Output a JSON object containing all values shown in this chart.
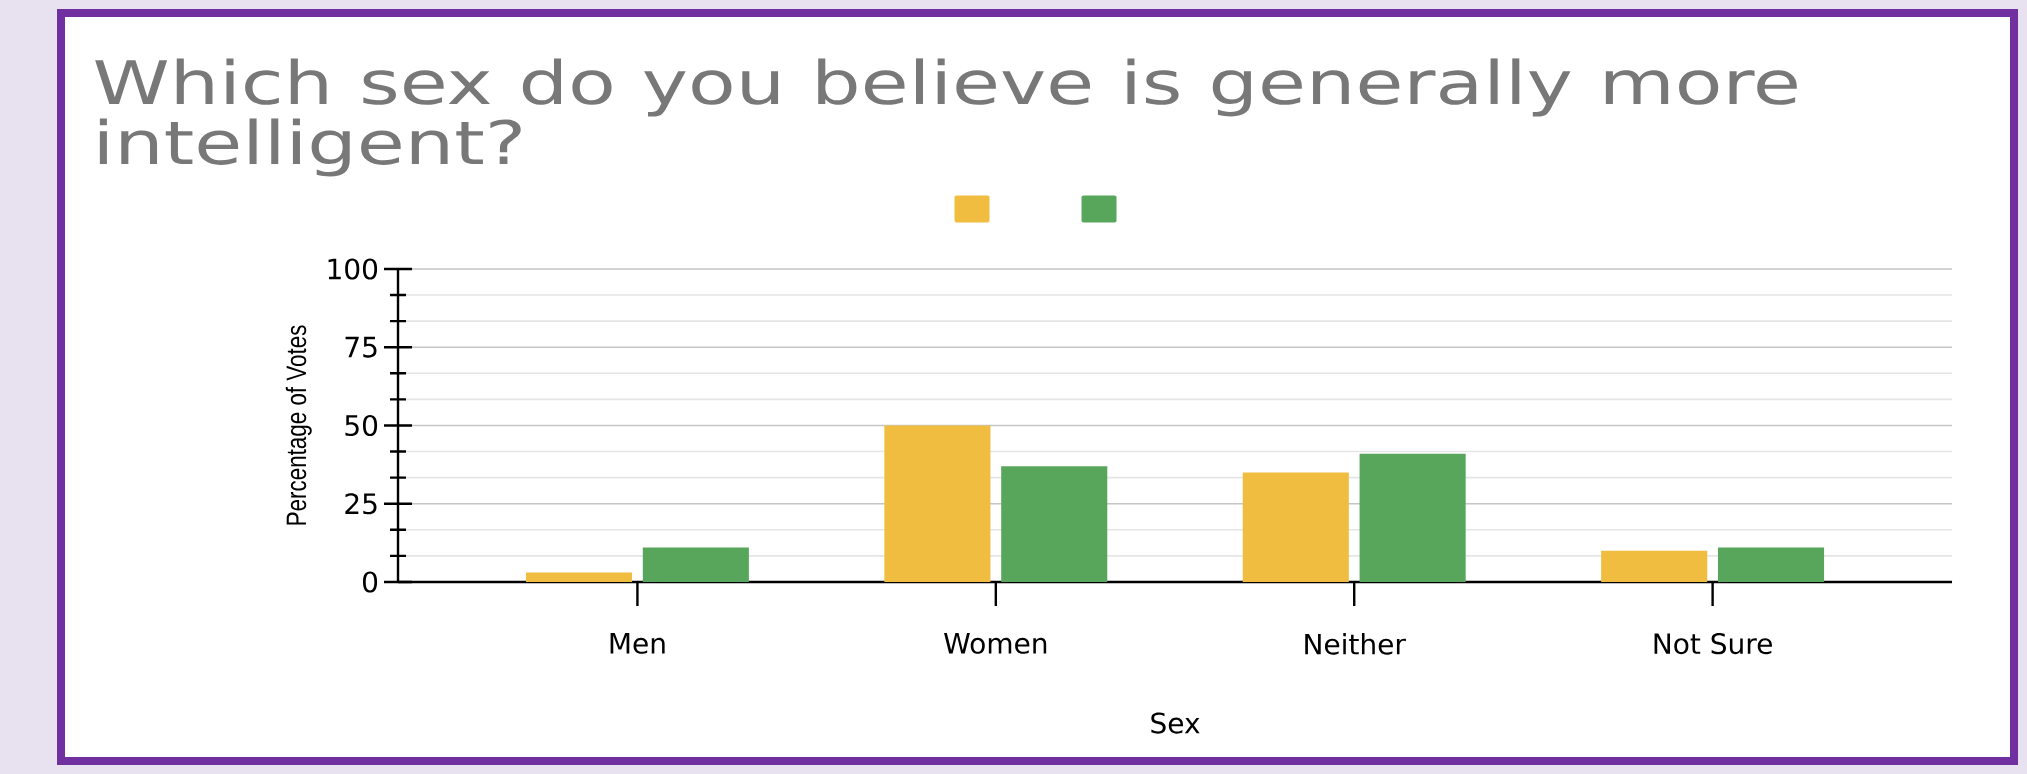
{
  "chart_data": {
    "type": "bar",
    "title": "Which sex do you believe is generally more intelligent?",
    "xlabel": "Sex",
    "ylabel": "Percentage of Votes",
    "categories": [
      "Men",
      "Women",
      "Neither",
      "Not Sure"
    ],
    "series": [
      {
        "color": "#f0bd41",
        "values": [
          3,
          50,
          35,
          10
        ]
      },
      {
        "color": "#58a55c",
        "values": [
          11,
          37,
          41,
          11
        ]
      }
    ],
    "ylim": [
      0,
      100
    ],
    "yticks": [
      0,
      {
        "value": 8.33,
        "label": null
      },
      {
        "value": 16.67,
        "label": null
      },
      25,
      {
        "value": 33.33,
        "label": null
      },
      {
        "value": 41.67,
        "label": null
      },
      50,
      {
        "value": 58.33,
        "label": null
      },
      {
        "value": 66.67,
        "label": null
      },
      75,
      {
        "value": 83.33,
        "label": null
      },
      {
        "value": 91.67,
        "label": null
      },
      100
    ],
    "grid": "y"
  }
}
